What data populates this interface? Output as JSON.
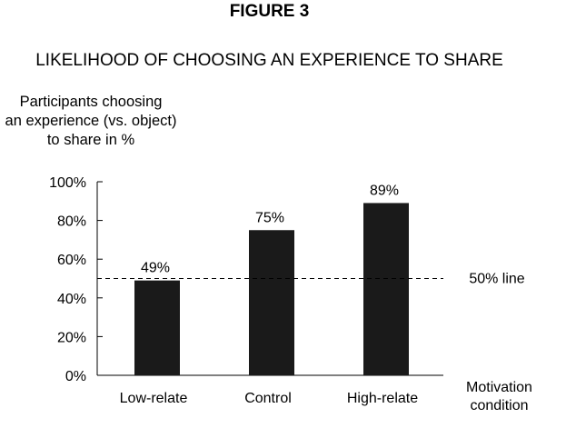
{
  "figure_label": "FIGURE 3",
  "chart_data": {
    "type": "bar",
    "title": "LIKELIHOOD OF CHOOSING AN EXPERIENCE TO SHARE",
    "ylabel": "Participants choosing an experience (vs. object) to share in %",
    "ylabel_lines": [
      "Participants choosing",
      "an experience (vs. object)",
      "to share in %"
    ],
    "xlabel": "Motivation condition",
    "xlabel_lines": [
      "Motivation",
      "condition"
    ],
    "categories": [
      "Low-relate",
      "Control",
      "High-relate"
    ],
    "values": [
      49,
      75,
      89
    ],
    "value_labels": [
      "49%",
      "75%",
      "89%"
    ],
    "ylim": [
      0,
      100
    ],
    "yticks": [
      0,
      20,
      40,
      60,
      80,
      100
    ],
    "ytick_labels": [
      "0%",
      "20%",
      "40%",
      "60%",
      "80%",
      "100%"
    ],
    "reference_line": {
      "value": 50,
      "label": "50% line",
      "style": "dashed"
    },
    "grid": false,
    "bar_color": "#1a1a1a"
  }
}
